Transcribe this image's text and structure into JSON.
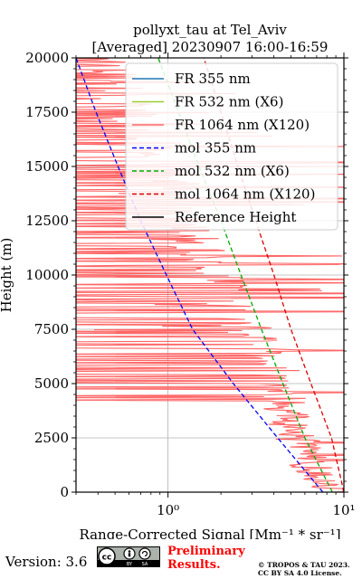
{
  "chart_data": {
    "type": "line",
    "title": "pollyxt_tau at Tel_Aviv",
    "subtitle": "[Averaged] 20230907 16:00-16:59",
    "xlabel": "Range-Corrected Signal [Mm⁻¹ * sr⁻¹]",
    "ylabel": "Height (m)",
    "xscale": "log",
    "xlim": [
      0.3,
      10
    ],
    "ylim": [
      0,
      20000
    ],
    "xticks": [
      {
        "value": 1,
        "label": "10⁰"
      },
      {
        "value": 10,
        "label": "10¹"
      }
    ],
    "yticks": [
      0,
      2500,
      5000,
      7500,
      10000,
      12500,
      15000,
      17500,
      20000
    ],
    "grid": true,
    "legend_position": "top-right",
    "series": [
      {
        "name": "FR 355 nm",
        "color": "#1f77b4",
        "style": "solid",
        "points": []
      },
      {
        "name": "FR 532 nm (X6)",
        "color": "#9acd32",
        "style": "solid",
        "points": []
      },
      {
        "name": "FR 1064 nm (X120)",
        "color": "#ff6666",
        "style": "solid",
        "noisy": true,
        "points": [
          [
            9.5,
            0
          ],
          [
            8.0,
            200
          ],
          [
            7.2,
            500
          ],
          [
            6.8,
            1000
          ],
          [
            6.2,
            1500
          ],
          [
            5.8,
            2000
          ],
          [
            5.4,
            2500
          ],
          [
            5.0,
            3000
          ],
          [
            4.8,
            3500
          ],
          [
            4.5,
            4000
          ],
          [
            4.3,
            4500
          ],
          [
            4.0,
            5000
          ],
          [
            3.7,
            5500
          ],
          [
            3.4,
            6000
          ],
          [
            3.2,
            6500
          ],
          [
            3.0,
            7000
          ],
          [
            2.8,
            7500
          ],
          [
            2.6,
            8000
          ],
          [
            2.4,
            8500
          ],
          [
            2.2,
            9000
          ],
          [
            2.0,
            9500
          ],
          [
            1.9,
            10000
          ],
          [
            1.7,
            10500
          ],
          [
            1.6,
            11000
          ],
          [
            1.5,
            11500
          ],
          [
            1.4,
            12000
          ],
          [
            1.3,
            12500
          ],
          [
            1.2,
            13000
          ],
          [
            1.1,
            13500
          ],
          [
            1.0,
            14000
          ],
          [
            0.95,
            14500
          ],
          [
            0.9,
            15000
          ],
          [
            0.85,
            15500
          ],
          [
            0.8,
            16000
          ],
          [
            0.75,
            16500
          ],
          [
            0.7,
            17000
          ],
          [
            0.65,
            17500
          ],
          [
            0.6,
            18000
          ],
          [
            0.55,
            18500
          ],
          [
            0.5,
            19000
          ],
          [
            0.45,
            19500
          ],
          [
            0.4,
            20000
          ]
        ]
      },
      {
        "name": "mol 355 nm",
        "color": "#0000ff",
        "style": "dashed",
        "points": [
          [
            7.6,
            0
          ],
          [
            4.2,
            2500
          ],
          [
            2.35,
            5000
          ],
          [
            1.38,
            7500
          ],
          [
            0.98,
            10000
          ],
          [
            0.7,
            12500
          ],
          [
            0.52,
            15000
          ],
          [
            0.39,
            17500
          ],
          [
            0.3,
            20000
          ]
        ]
      },
      {
        "name": "mol 532 nm (X6)",
        "color": "#00aa00",
        "style": "dashed",
        "points": [
          [
            8.6,
            0
          ],
          [
            6.0,
            2500
          ],
          [
            4.5,
            5000
          ],
          [
            3.4,
            7500
          ],
          [
            2.6,
            10000
          ],
          [
            2.0,
            12500
          ],
          [
            1.5,
            15000
          ],
          [
            1.15,
            17500
          ],
          [
            0.88,
            20000
          ]
        ]
      },
      {
        "name": "mol 1064 nm (X120)",
        "color": "#dd0000",
        "style": "dashed",
        "points": [
          [
            10.0,
            0
          ],
          [
            8.5,
            2500
          ],
          [
            6.5,
            5000
          ],
          [
            5.0,
            7500
          ],
          [
            4.0,
            10000
          ],
          [
            3.15,
            12500
          ],
          [
            2.5,
            15000
          ],
          [
            2.0,
            17500
          ],
          [
            1.6,
            20000
          ]
        ]
      },
      {
        "name": "Reference Height",
        "color": "#000000",
        "style": "solid",
        "points": []
      }
    ]
  },
  "footer": {
    "version": "Version: 3.6",
    "license_badge": "cc BY SA",
    "preliminary_line1": "Preliminary",
    "preliminary_line2": "Results.",
    "copyright_line1": "© TROPOS & TAU 2023.",
    "copyright_line2": "CC BY SA 4.0 License."
  }
}
